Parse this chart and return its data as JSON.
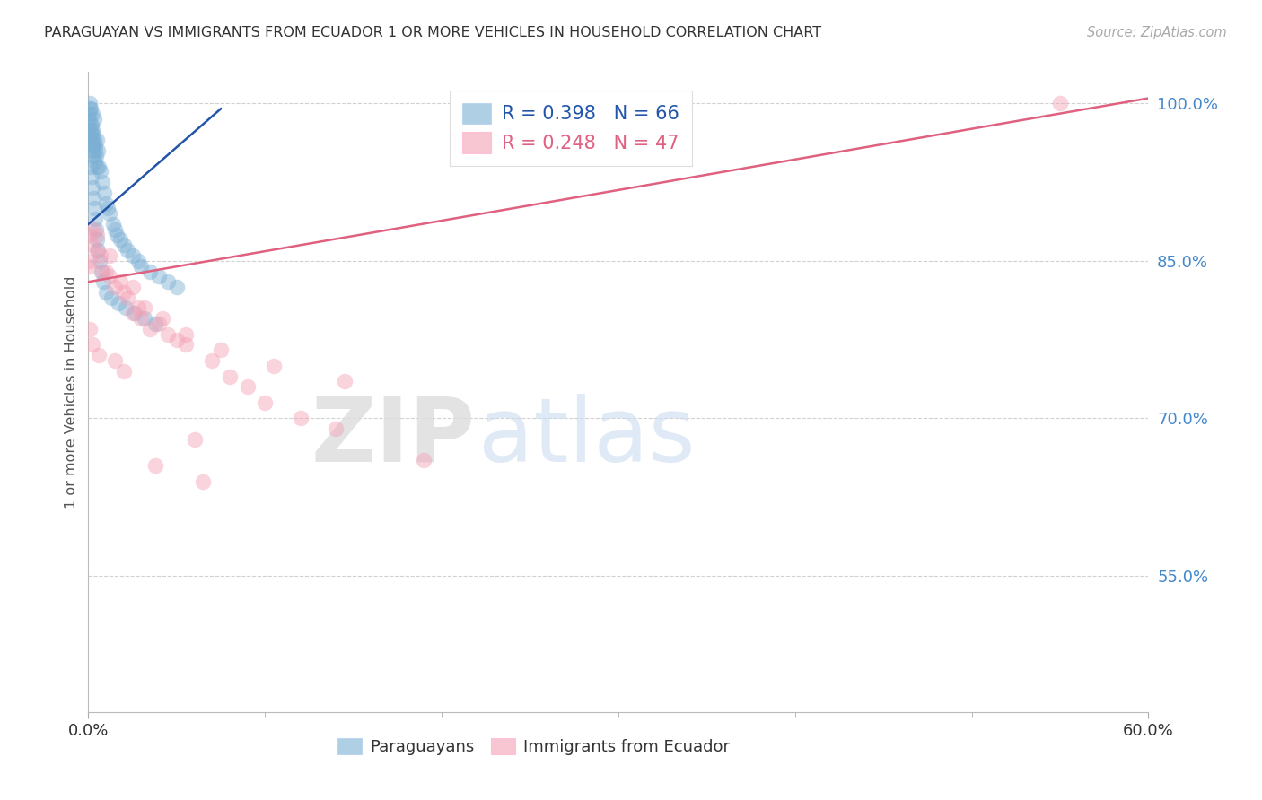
{
  "title": "PARAGUAYAN VS IMMIGRANTS FROM ECUADOR 1 OR MORE VEHICLES IN HOUSEHOLD CORRELATION CHART",
  "source": "Source: ZipAtlas.com",
  "ylabel": "1 or more Vehicles in Household",
  "r1": 0.398,
  "n1": 66,
  "r2": 0.248,
  "n2": 47,
  "blue_color": "#7BAFD4",
  "pink_color": "#F4A0B5",
  "blue_line_color": "#2255AA",
  "pink_line_color": "#E06080",
  "axis_label_color": "#4488CC",
  "grid_color": "#CCCCCC",
  "legend_labels": [
    "Paraguayans",
    "Immigrants from Ecuador"
  ],
  "xmin": 0.0,
  "xmax": 60.0,
  "ymin": 42.0,
  "ymax": 103.0,
  "yticks": [
    55.0,
    70.0,
    85.0,
    100.0
  ],
  "ytick_labels": [
    "55.0%",
    "70.0%",
    "85.0%",
    "100.0%"
  ],
  "xtick_labels": [
    "0.0%",
    "60.0%"
  ],
  "blue_trend_x": [
    0.0,
    7.5
  ],
  "blue_trend_y": [
    88.5,
    99.5
  ],
  "pink_trend_x": [
    0.0,
    60.0
  ],
  "pink_trend_y": [
    83.0,
    100.5
  ],
  "blue_x": [
    0.05,
    0.05,
    0.08,
    0.1,
    0.1,
    0.12,
    0.15,
    0.15,
    0.18,
    0.2,
    0.2,
    0.22,
    0.22,
    0.25,
    0.25,
    0.28,
    0.3,
    0.3,
    0.32,
    0.35,
    0.38,
    0.4,
    0.4,
    0.45,
    0.5,
    0.5,
    0.55,
    0.6,
    0.7,
    0.8,
    0.9,
    1.0,
    1.1,
    1.2,
    1.4,
    1.5,
    1.6,
    1.8,
    2.0,
    2.2,
    2.5,
    2.8,
    3.0,
    3.5,
    4.0,
    4.5,
    5.0,
    0.12,
    0.18,
    0.22,
    0.28,
    0.32,
    0.38,
    0.42,
    0.48,
    0.55,
    0.65,
    0.75,
    0.85,
    1.0,
    1.3,
    1.7,
    2.1,
    2.6,
    3.2,
    3.8
  ],
  "blue_y": [
    97.0,
    98.5,
    99.5,
    99.0,
    100.0,
    98.0,
    97.5,
    99.5,
    96.5,
    97.0,
    98.0,
    96.0,
    99.0,
    95.5,
    97.5,
    96.0,
    95.0,
    97.0,
    98.5,
    96.5,
    95.5,
    94.5,
    96.0,
    95.0,
    94.0,
    96.5,
    95.5,
    94.0,
    93.5,
    92.5,
    91.5,
    90.5,
    90.0,
    89.5,
    88.5,
    88.0,
    87.5,
    87.0,
    86.5,
    86.0,
    85.5,
    85.0,
    84.5,
    84.0,
    83.5,
    83.0,
    82.5,
    94.0,
    93.0,
    92.0,
    91.0,
    90.0,
    89.0,
    88.0,
    87.0,
    86.0,
    85.0,
    84.0,
    83.0,
    82.0,
    81.5,
    81.0,
    80.5,
    80.0,
    79.5,
    79.0
  ],
  "pink_x": [
    0.05,
    0.1,
    0.15,
    0.2,
    0.3,
    0.5,
    0.5,
    0.7,
    0.8,
    1.0,
    1.2,
    1.5,
    1.8,
    2.0,
    2.2,
    2.5,
    2.8,
    3.0,
    3.5,
    4.0,
    4.5,
    5.0,
    5.5,
    6.0,
    7.0,
    8.0,
    9.0,
    10.0,
    12.0,
    14.0,
    1.2,
    2.5,
    3.2,
    4.2,
    5.5,
    7.5,
    10.5,
    14.5,
    19.0,
    0.08,
    0.25,
    0.6,
    1.5,
    2.0,
    3.8,
    6.5,
    55.0
  ],
  "pink_y": [
    84.5,
    87.5,
    85.0,
    86.5,
    88.0,
    87.5,
    86.0,
    85.5,
    84.0,
    84.0,
    83.5,
    82.5,
    83.0,
    82.0,
    81.5,
    80.0,
    80.5,
    79.5,
    78.5,
    79.0,
    78.0,
    77.5,
    77.0,
    68.0,
    75.5,
    74.0,
    73.0,
    71.5,
    70.0,
    69.0,
    85.5,
    82.5,
    80.5,
    79.5,
    78.0,
    76.5,
    75.0,
    73.5,
    66.0,
    78.5,
    77.0,
    76.0,
    75.5,
    74.5,
    65.5,
    64.0,
    100.0
  ]
}
